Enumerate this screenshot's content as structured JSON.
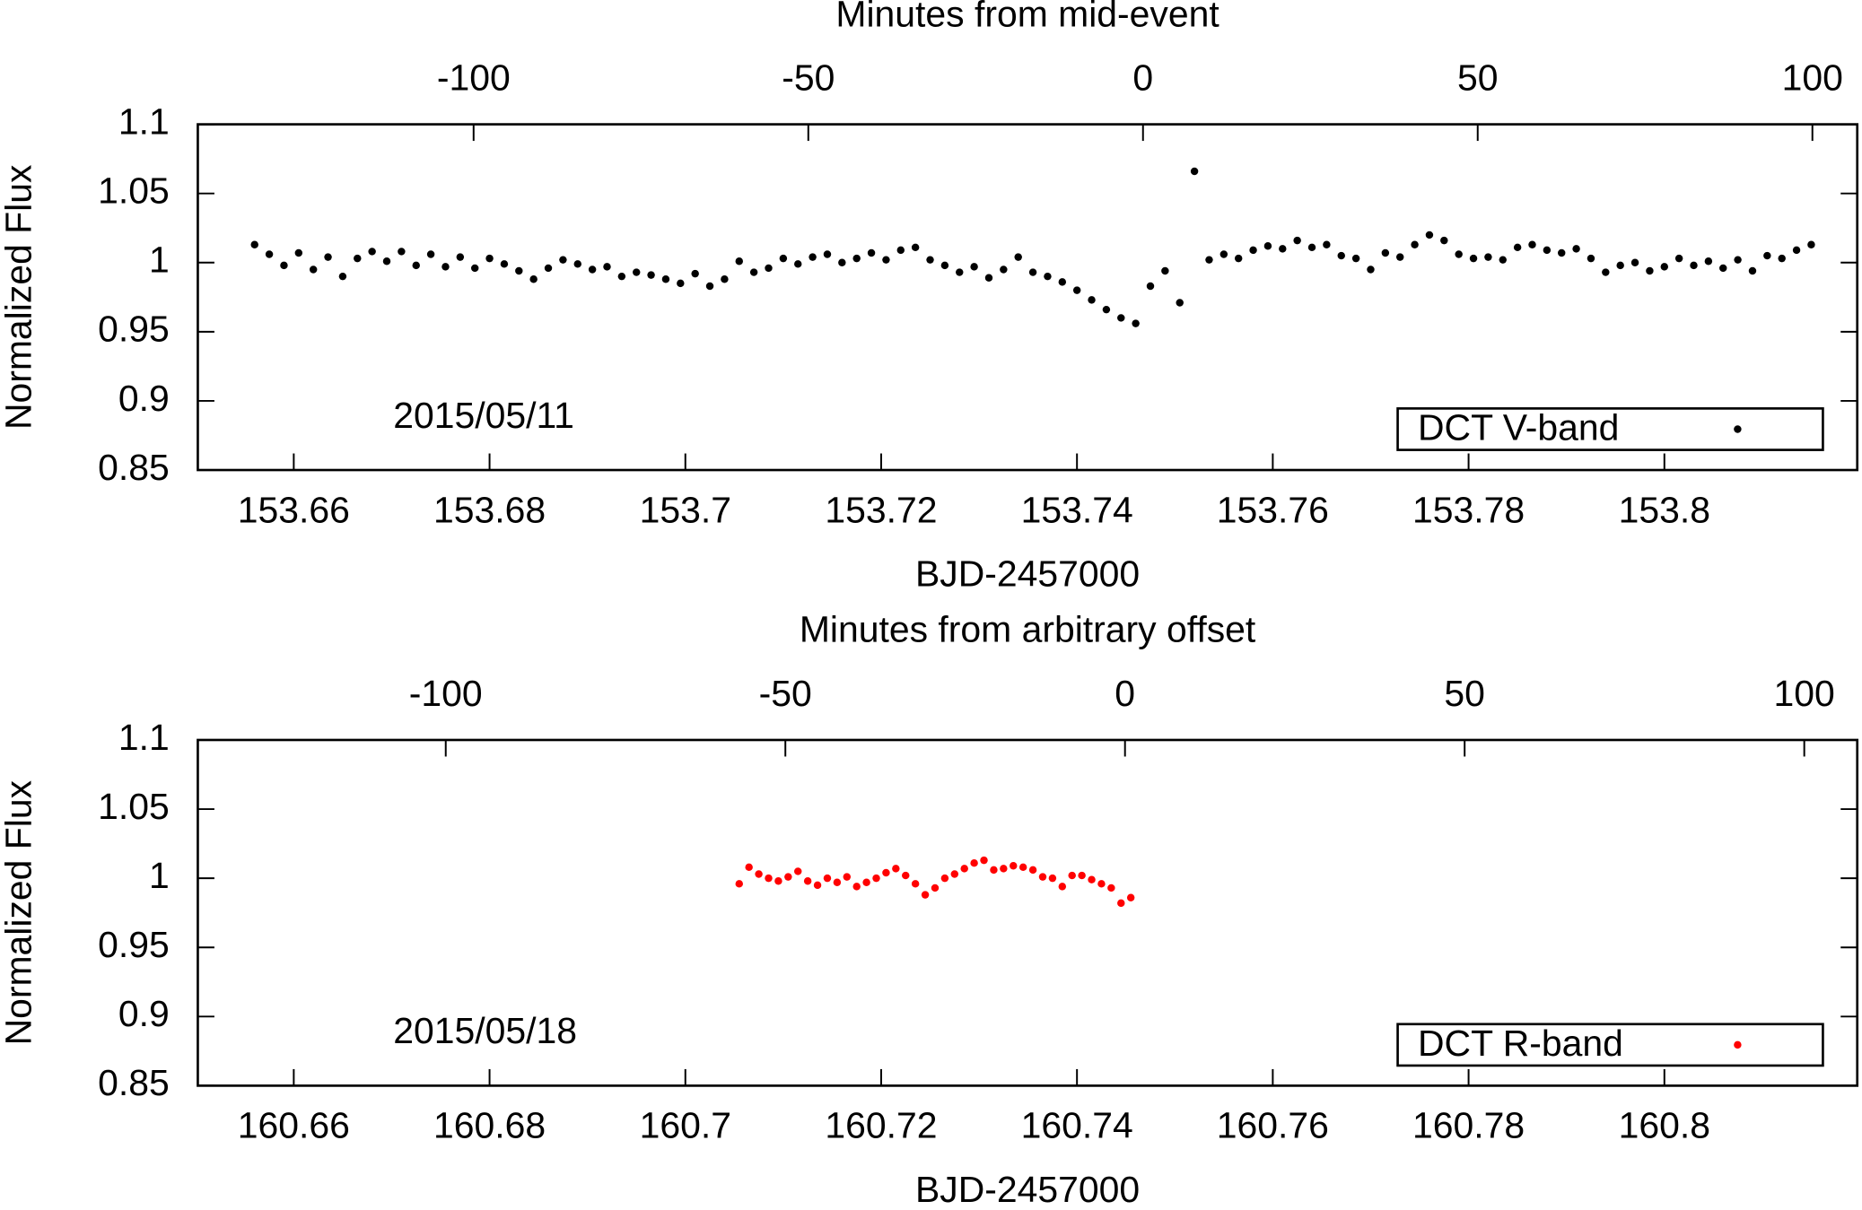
{
  "chart_data": [
    {
      "type": "scatter",
      "xlabel": "BJD-2457000",
      "ylabel": "Normalized Flux",
      "x2label": "Minutes from mid-event",
      "annotation": "2015/05/11",
      "legend": "bottom right",
      "xlim": [
        153.6502,
        153.8197
      ],
      "xticks": [
        153.66,
        153.68,
        153.7,
        153.72,
        153.74,
        153.76,
        153.78,
        153.8
      ],
      "x2lim": [
        -141.2,
        106.7
      ],
      "x2ticks": [
        -100,
        -50,
        0,
        50,
        100
      ],
      "ylim": [
        0.85,
        1.1
      ],
      "yticks": [
        0.85,
        0.9,
        0.95,
        1,
        1.05,
        1.1
      ],
      "x": [
        153.656,
        153.6575,
        153.659,
        153.6605,
        153.662,
        153.6635,
        153.665,
        153.6665,
        153.668,
        153.6695,
        153.671,
        153.6725,
        153.674,
        153.6755,
        153.677,
        153.6785,
        153.68,
        153.6815,
        153.683,
        153.6845,
        153.686,
        153.6875,
        153.689,
        153.6905,
        153.692,
        153.6935,
        153.695,
        153.6965,
        153.698,
        153.6995,
        153.701,
        153.7025,
        153.704,
        153.7055,
        153.707,
        153.7085,
        153.71,
        153.7115,
        153.713,
        153.7145,
        153.716,
        153.7175,
        153.719,
        153.7205,
        153.722,
        153.7235,
        153.725,
        153.7265,
        153.728,
        153.7295,
        153.731,
        153.7325,
        153.734,
        153.7355,
        153.737,
        153.7385,
        153.74,
        153.7415,
        153.743,
        153.7445,
        153.746,
        153.7475,
        153.749,
        153.7505,
        153.752,
        153.7535,
        153.755,
        153.7565,
        153.758,
        153.7595,
        153.761,
        153.7625,
        153.764,
        153.7655,
        153.767,
        153.7685,
        153.77,
        153.7715,
        153.773,
        153.7745,
        153.776,
        153.7775,
        153.779,
        153.7805,
        153.782,
        153.7835,
        153.785,
        153.7865,
        153.788,
        153.7895,
        153.791,
        153.7925,
        153.794,
        153.7955,
        153.797,
        153.7985,
        153.8,
        153.8015,
        153.803,
        153.8045,
        153.806,
        153.8075,
        153.809,
        153.8105,
        153.812,
        153.8135,
        153.815
      ],
      "series": [
        {
          "name": "DCT V-band",
          "color": "#000000",
          "values": [
            1.013,
            1.006,
            0.998,
            1.007,
            0.995,
            1.004,
            0.99,
            1.003,
            1.008,
            1.001,
            1.008,
            0.998,
            1.006,
            0.997,
            1.004,
            0.996,
            1.003,
            0.999,
            0.994,
            0.988,
            0.996,
            1.002,
            0.999,
            0.995,
            0.997,
            0.99,
            0.993,
            0.991,
            0.988,
            0.985,
            0.992,
            0.983,
            0.988,
            1.001,
            0.993,
            0.996,
            1.003,
            0.999,
            1.004,
            1.006,
            1.0,
            1.003,
            1.007,
            1.002,
            1.009,
            1.011,
            1.002,
            0.998,
            0.993,
            0.997,
            0.989,
            0.995,
            1.004,
            0.993,
            0.99,
            0.986,
            0.98,
            0.973,
            0.966,
            0.96,
            0.956,
            0.983,
            0.994,
            0.971,
            1.066,
            1.002,
            1.006,
            1.003,
            1.009,
            1.012,
            1.01,
            1.016,
            1.011,
            1.013,
            1.005,
            1.003,
            0.995,
            1.007,
            1.004,
            1.013,
            1.02,
            1.016,
            1.006,
            1.003,
            1.004,
            1.002,
            1.011,
            1.013,
            1.009,
            1.007,
            1.01,
            1.003,
            0.993,
            0.998,
            1.0,
            0.994,
            0.997,
            1.003,
            0.998,
            1.001,
            0.996,
            1.002,
            0.994,
            1.005,
            1.003,
            1.009,
            1.013
          ]
        }
      ]
    },
    {
      "type": "scatter",
      "xlabel": "BJD-2457000",
      "ylabel": "Normalized Flux",
      "x2label": "Minutes from arbitrary offset",
      "annotation": "2015/05/18",
      "legend": "bottom right",
      "xlim": [
        160.6502,
        160.8197
      ],
      "xticks": [
        160.66,
        160.68,
        160.7,
        160.72,
        160.74,
        160.76,
        160.78,
        160.8
      ],
      "x2lim": [
        -136.5,
        107.8
      ],
      "x2ticks": [
        -100,
        -50,
        0,
        50,
        100
      ],
      "ylim": [
        0.85,
        1.1
      ],
      "yticks": [
        0.85,
        0.9,
        0.95,
        1,
        1.05,
        1.1
      ],
      "x": [
        160.7055,
        160.7065,
        160.7075,
        160.7085,
        160.7095,
        160.7105,
        160.7115,
        160.7125,
        160.7135,
        160.7145,
        160.7155,
        160.7165,
        160.7175,
        160.7185,
        160.7195,
        160.7205,
        160.7215,
        160.7225,
        160.7235,
        160.7245,
        160.7255,
        160.7265,
        160.7275,
        160.7285,
        160.7295,
        160.7305,
        160.7315,
        160.7325,
        160.7335,
        160.7345,
        160.7355,
        160.7365,
        160.7375,
        160.7385,
        160.7395,
        160.7405,
        160.7415,
        160.7425,
        160.7435,
        160.7445,
        160.7455
      ],
      "series": [
        {
          "name": "DCT R-band",
          "color": "#ff0000",
          "values": [
            0.996,
            1.008,
            1.003,
            1.0,
            0.998,
            1.001,
            1.005,
            0.998,
            0.995,
            1.0,
            0.997,
            1.001,
            0.994,
            0.997,
            1.0,
            1.004,
            1.007,
            1.002,
            0.996,
            0.988,
            0.993,
            1.0,
            1.003,
            1.007,
            1.011,
            1.013,
            1.006,
            1.007,
            1.009,
            1.008,
            1.006,
            1.001,
            1.0,
            0.994,
            1.002,
            1.002,
            0.999,
            0.996,
            0.993,
            0.982,
            0.986
          ]
        }
      ]
    }
  ]
}
